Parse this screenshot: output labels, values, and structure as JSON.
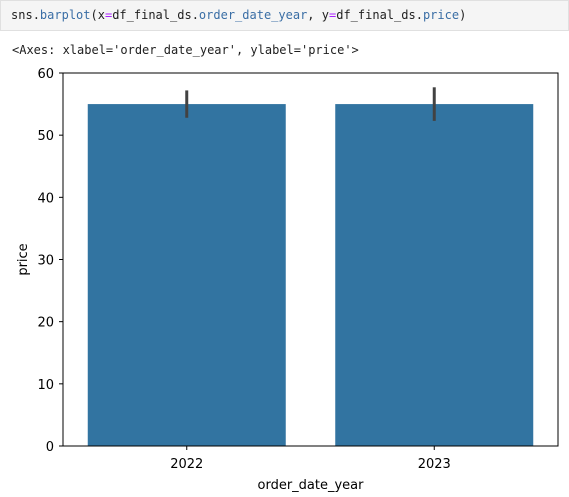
{
  "cell": {
    "code_parts": [
      {
        "text": "sns",
        "cls": "tok-id"
      },
      {
        "text": ".",
        "cls": "tok-punc"
      },
      {
        "text": "barplot",
        "cls": "tok-attr"
      },
      {
        "text": "(",
        "cls": "tok-punc"
      },
      {
        "text": "x",
        "cls": "tok-id"
      },
      {
        "text": "=",
        "cls": "tok-op"
      },
      {
        "text": "df_final_ds",
        "cls": "tok-id"
      },
      {
        "text": ".",
        "cls": "tok-punc"
      },
      {
        "text": "order_date_year",
        "cls": "tok-attr"
      },
      {
        "text": ", ",
        "cls": "tok-punc"
      },
      {
        "text": "y",
        "cls": "tok-id"
      },
      {
        "text": "=",
        "cls": "tok-op"
      },
      {
        "text": "df_final_ds",
        "cls": "tok-id"
      },
      {
        "text": ".",
        "cls": "tok-punc"
      },
      {
        "text": "price",
        "cls": "tok-attr"
      },
      {
        "text": ")",
        "cls": "tok-punc"
      }
    ],
    "output": "<Axes: xlabel='order_date_year', ylabel='price'>"
  },
  "chart_data": {
    "type": "bar",
    "categories": [
      "2022",
      "2023"
    ],
    "values": [
      55.0,
      55.0
    ],
    "error_bars": [
      [
        52.8,
        57.2
      ],
      [
        52.3,
        57.7
      ]
    ],
    "xlabel": "order_date_year",
    "ylabel": "price",
    "ylim": [
      0,
      60
    ],
    "yticks": [
      0,
      10,
      20,
      30,
      40,
      50,
      60
    ],
    "bar_color": "#3274a1",
    "errbar_color": "#424242",
    "grid": false
  }
}
